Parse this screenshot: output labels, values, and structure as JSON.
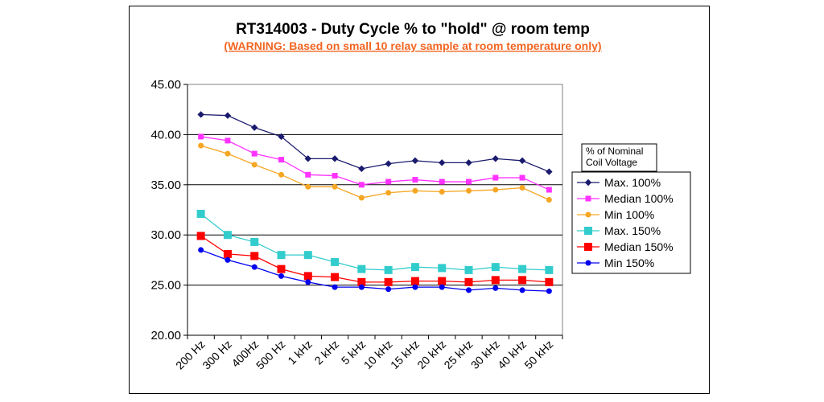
{
  "chart_data": {
    "type": "line",
    "title": "RT314003 - Duty Cycle % to \"hold\" @ room temp",
    "subtitle": "(WARNING: Based on small 10 relay sample at room temperature only)",
    "xlabel": "",
    "ylabel": "",
    "ylim": [
      20,
      45
    ],
    "yticks": [
      "20.00",
      "25.00",
      "30.00",
      "35.00",
      "40.00",
      "45.00"
    ],
    "grid": true,
    "categories": [
      "200 Hz",
      "300 Hz",
      "400Hz",
      "500 Hz",
      "1 kHz",
      "2 kHz",
      "5 kHz",
      "10 kHz",
      "15 kHz",
      "20 kHz",
      "25 kHz",
      "30 kHz",
      "40 kHz",
      "50 kHz"
    ],
    "legend_title": [
      "% of Nominal",
      "Coil Voltage"
    ],
    "legend_position": "right",
    "series": [
      {
        "name": "Max. 100%",
        "color": "#1a1a6e",
        "marker": "diamond",
        "values": [
          42.0,
          41.9,
          40.7,
          39.8,
          37.6,
          37.6,
          36.6,
          37.1,
          37.4,
          37.2,
          37.2,
          37.6,
          37.4,
          36.3
        ]
      },
      {
        "name": "Median 100%",
        "color": "#ff33ff",
        "marker": "square",
        "values": [
          39.8,
          39.4,
          38.1,
          37.5,
          36.0,
          35.9,
          35.0,
          35.3,
          35.5,
          35.3,
          35.3,
          35.7,
          35.7,
          34.5
        ]
      },
      {
        "name": "Min 100%",
        "color": "#f5a623",
        "marker": "circle",
        "values": [
          38.9,
          38.1,
          37.0,
          36.0,
          34.8,
          34.8,
          33.7,
          34.2,
          34.4,
          34.3,
          34.4,
          34.5,
          34.7,
          33.5
        ]
      },
      {
        "name": "Max. 150%",
        "color": "#33cccc",
        "marker": "square-lg",
        "values": [
          32.1,
          30.0,
          29.3,
          28.0,
          28.0,
          27.3,
          26.6,
          26.5,
          26.8,
          26.7,
          26.5,
          26.8,
          26.6,
          26.5
        ]
      },
      {
        "name": "Median 150%",
        "color": "#ff0000",
        "marker": "square-lg",
        "values": [
          29.9,
          28.1,
          27.9,
          26.6,
          25.9,
          25.8,
          25.3,
          25.3,
          25.4,
          25.4,
          25.3,
          25.5,
          25.5,
          25.3
        ]
      },
      {
        "name": "Min 150%",
        "color": "#0000ee",
        "marker": "circle",
        "values": [
          28.5,
          27.5,
          26.8,
          25.9,
          25.3,
          24.8,
          24.8,
          24.6,
          24.8,
          24.8,
          24.5,
          24.7,
          24.5,
          24.4
        ]
      }
    ]
  }
}
